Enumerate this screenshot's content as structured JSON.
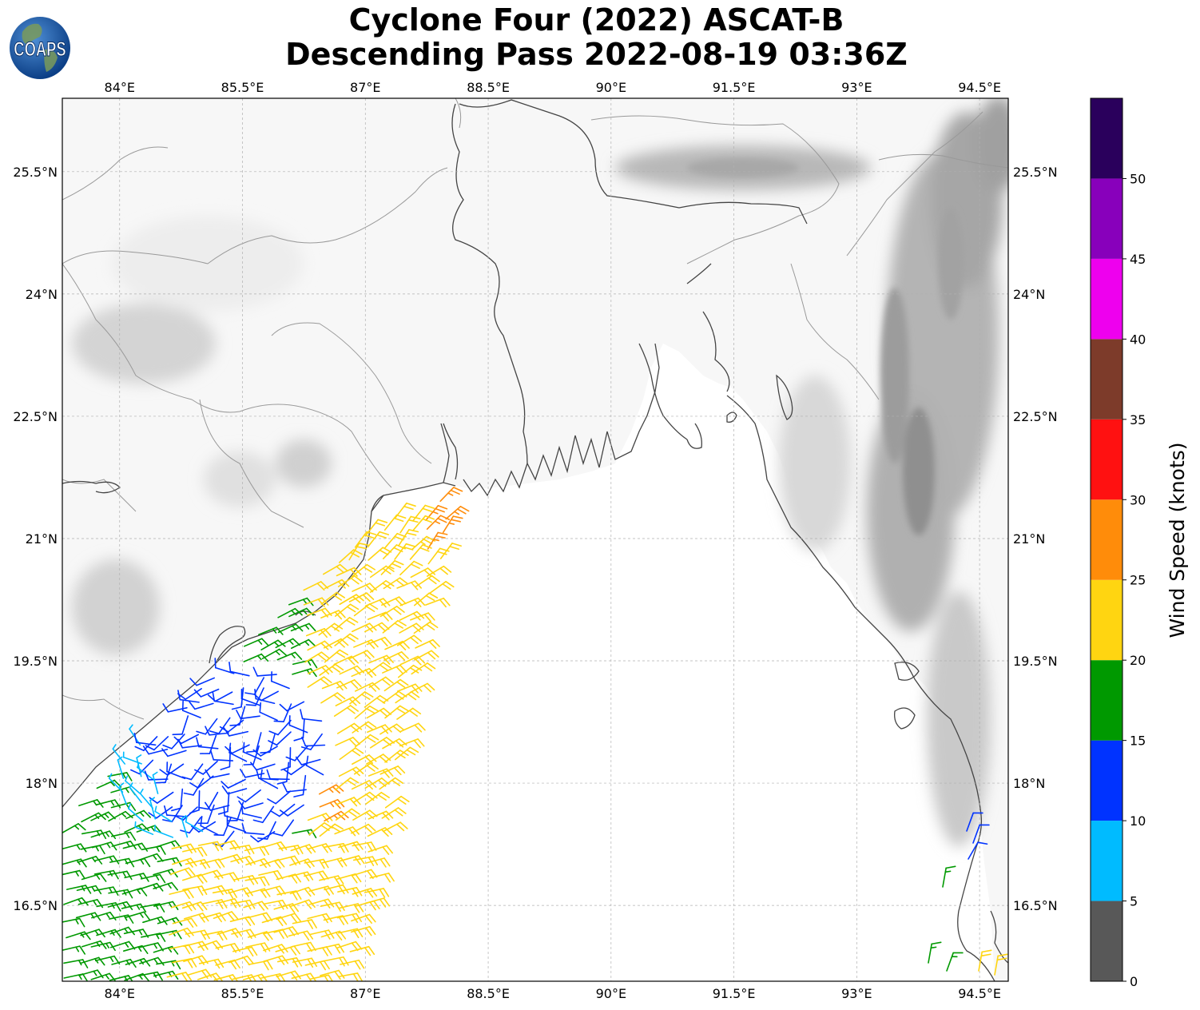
{
  "title": {
    "line1": "Cyclone Four (2022) ASCAT-B",
    "line2": "Descending Pass 2022-08-19 03:36Z"
  },
  "logo": {
    "text": "COAPS",
    "icon": "globe-icon"
  },
  "map": {
    "lon_labels": [
      "84°E",
      "85.5°E",
      "87°E",
      "88.5°E",
      "90°E",
      "91.5°E",
      "93°E",
      "94.5°E"
    ],
    "lat_labels": [
      "25.5°N",
      "24°N",
      "22.5°N",
      "21°N",
      "19.5°N",
      "18°N",
      "16.5°N"
    ],
    "lon_values": [
      84,
      85.5,
      87,
      88.5,
      90,
      91.5,
      93,
      94.5
    ],
    "lat_values": [
      25.5,
      24,
      22.5,
      21,
      19.5,
      18,
      16.5
    ],
    "extent": {
      "lon_min": 83.3,
      "lon_max": 94.85,
      "lat_min": 15.57,
      "lat_max": 26.4
    },
    "land_color": "#f7f7f7",
    "ocean_color": "#ffffff",
    "coast_color": "#444444",
    "border_color": "#999999",
    "grid_color": "#b0b0b0"
  },
  "colorbar": {
    "title": "Wind Speed (knots)",
    "tick_labels": [
      "0",
      "5",
      "10",
      "15",
      "20",
      "25",
      "30",
      "35",
      "40",
      "45",
      "50"
    ],
    "bins": [
      {
        "from": 0,
        "to": 5,
        "color": "#585858"
      },
      {
        "from": 5,
        "to": 10,
        "color": "#00bbff"
      },
      {
        "from": 10,
        "to": 15,
        "color": "#0033ff"
      },
      {
        "from": 15,
        "to": 20,
        "color": "#009900"
      },
      {
        "from": 20,
        "to": 25,
        "color": "#ffd511"
      },
      {
        "from": 25,
        "to": 30,
        "color": "#ff8c0a"
      },
      {
        "from": 30,
        "to": 35,
        "color": "#ff1111"
      },
      {
        "from": 35,
        "to": 40,
        "color": "#7d3b2a"
      },
      {
        "from": 40,
        "to": 45,
        "color": "#ee00ee"
      },
      {
        "from": 45,
        "to": 50,
        "color": "#8800bb"
      },
      {
        "from": 50,
        "to": 55,
        "color": "#2a005c"
      }
    ]
  }
}
